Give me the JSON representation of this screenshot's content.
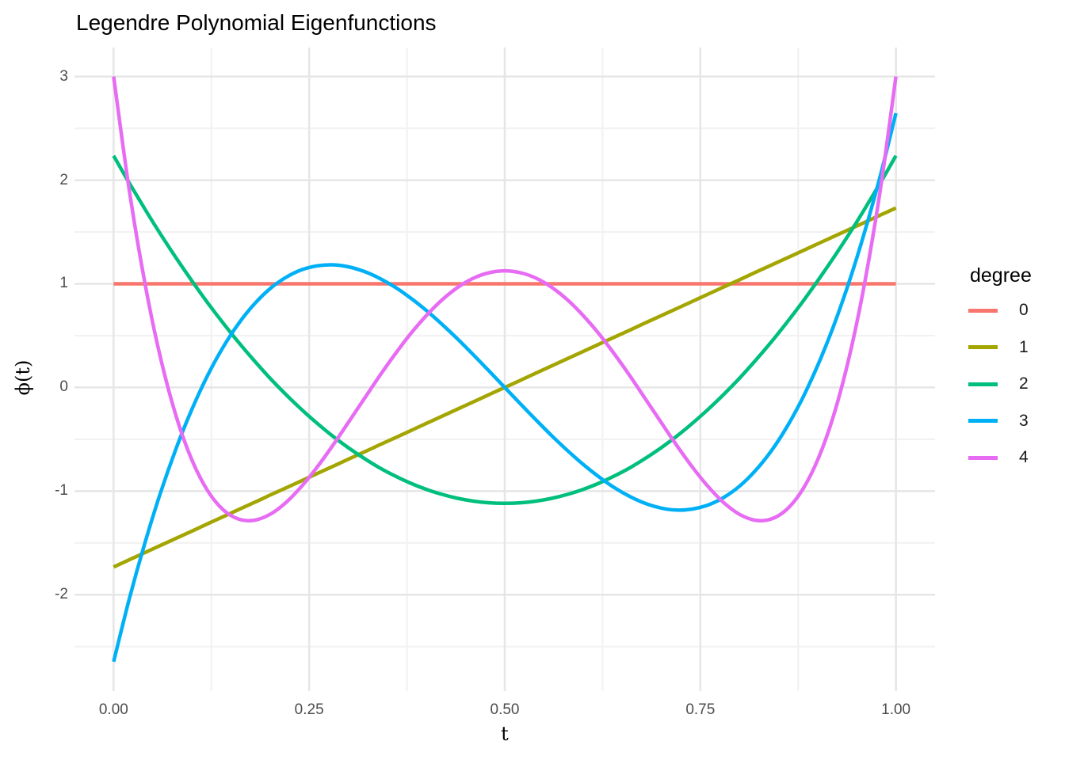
{
  "title": "Legendre Polynomial Eigenfunctions",
  "chart_data": {
    "type": "line",
    "title": "Legendre Polynomial Eigenfunctions",
    "xlabel": "t",
    "ylabel": "ϕ(t)",
    "xlim": [
      -0.05,
      1.05
    ],
    "ylim": [
      -2.93,
      3.28
    ],
    "grid": "major and minor, light gray on white, no axis lines, no tick marks",
    "legend": {
      "title": "degree",
      "position": "right"
    },
    "x_ticks": {
      "values": [
        0,
        0.25,
        0.5,
        0.75,
        1
      ],
      "labels": [
        "0.00",
        "0.25",
        "0.50",
        "0.75",
        "1.00"
      ]
    },
    "y_ticks": {
      "values": [
        3,
        2,
        1,
        0,
        -1,
        -2
      ],
      "labels": [
        "3",
        "2",
        "1",
        "0",
        "-1",
        "-2"
      ]
    },
    "x_minor": [
      0.125,
      0.375,
      0.625,
      0.875
    ],
    "y_minor": [
      2.5,
      1.5,
      0.5,
      -0.5,
      -1.5,
      -2.5
    ],
    "x": [
      0,
      0.02,
      0.04,
      0.06,
      0.08,
      0.1,
      0.12,
      0.14,
      0.16,
      0.18,
      0.2,
      0.22,
      0.24,
      0.26,
      0.28,
      0.3,
      0.32,
      0.34,
      0.36,
      0.38,
      0.4,
      0.42,
      0.44,
      0.46,
      0.48,
      0.5,
      0.52,
      0.54,
      0.56,
      0.58,
      0.6,
      0.62,
      0.64,
      0.66,
      0.68,
      0.7,
      0.72,
      0.74,
      0.76,
      0.78,
      0.8,
      0.82,
      0.84,
      0.86,
      0.88,
      0.9,
      0.92,
      0.94,
      0.96,
      0.98,
      1
    ],
    "series": [
      {
        "name": "0",
        "color": "#F8766D",
        "values": [
          1,
          1,
          1,
          1,
          1,
          1,
          1,
          1,
          1,
          1,
          1,
          1,
          1,
          1,
          1,
          1,
          1,
          1,
          1,
          1,
          1,
          1,
          1,
          1,
          1,
          1,
          1,
          1,
          1,
          1,
          1,
          1,
          1,
          1,
          1,
          1,
          1,
          1,
          1,
          1,
          1,
          1,
          1,
          1,
          1,
          1,
          1,
          1,
          1,
          1,
          1
        ]
      },
      {
        "name": "1",
        "color": "#A3A500",
        "values": [
          -1.732,
          -1.663,
          -1.593,
          -1.524,
          -1.455,
          -1.386,
          -1.316,
          -1.247,
          -1.178,
          -1.109,
          -1.039,
          -0.97,
          -0.901,
          -0.831,
          -0.762,
          -0.693,
          -0.624,
          -0.554,
          -0.485,
          -0.416,
          -0.346,
          -0.277,
          -0.208,
          -0.139,
          -0.069,
          0,
          0.069,
          0.139,
          0.208,
          0.277,
          0.346,
          0.416,
          0.485,
          0.554,
          0.624,
          0.693,
          0.762,
          0.831,
          0.901,
          0.97,
          1.039,
          1.109,
          1.178,
          1.247,
          1.316,
          1.386,
          1.455,
          1.524,
          1.593,
          1.663,
          1.732
        ]
      },
      {
        "name": "2",
        "color": "#00BF7D",
        "values": [
          2.236,
          1.973,
          1.721,
          1.479,
          1.249,
          1.029,
          0.819,
          0.621,
          0.433,
          0.256,
          0.089,
          -0.066,
          -0.211,
          -0.345,
          -0.469,
          -0.581,
          -0.683,
          -0.775,
          -0.855,
          -0.925,
          -0.984,
          -1.032,
          -1.07,
          -1.097,
          -1.113,
          -1.118,
          -1.113,
          -1.097,
          -1.07,
          -1.032,
          -0.984,
          -0.925,
          -0.855,
          -0.775,
          -0.683,
          -0.581,
          -0.469,
          -0.345,
          -0.211,
          -0.066,
          0.089,
          0.256,
          0.433,
          0.621,
          0.819,
          1.029,
          1.249,
          1.479,
          1.721,
          1.973,
          2.236
        ]
      },
      {
        "name": "3",
        "color": "#00B0F6",
        "values": [
          -2.646,
          -2.042,
          -1.5,
          -1.015,
          -0.587,
          -0.212,
          0.113,
          0.389,
          0.619,
          0.806,
          0.953,
          1.061,
          1.134,
          1.173,
          1.183,
          1.164,
          1.12,
          1.053,
          0.966,
          0.861,
          0.741,
          0.608,
          0.465,
          0.314,
          0.158,
          0,
          -0.158,
          -0.314,
          -0.465,
          -0.608,
          -0.741,
          -0.861,
          -0.966,
          -1.053,
          -1.12,
          -1.164,
          -1.183,
          -1.173,
          -1.134,
          -1.061,
          -0.953,
          -0.806,
          -0.619,
          -0.389,
          -0.113,
          0.212,
          0.587,
          1.015,
          1.5,
          2.042,
          2.646
        ]
      },
      {
        "name": "4",
        "color": "#E76BF3",
        "values": [
          3,
          1.905,
          1.006,
          0.284,
          -0.278,
          -0.699,
          -0.994,
          -1.18,
          -1.271,
          -1.281,
          -1.224,
          -1.112,
          -0.957,
          -0.77,
          -0.561,
          -0.339,
          -0.113,
          0.111,
          0.324,
          0.521,
          0.696,
          0.846,
          0.966,
          1.054,
          1.107,
          1.125,
          1.107,
          1.054,
          0.966,
          0.846,
          0.696,
          0.521,
          0.324,
          0.111,
          -0.113,
          -0.339,
          -0.561,
          -0.77,
          -0.957,
          -1.112,
          -1.224,
          -1.281,
          -1.271,
          -1.18,
          -0.994,
          -0.699,
          -0.278,
          0.284,
          1.006,
          1.905,
          3
        ]
      }
    ]
  },
  "style": {
    "background": "#FFFFFF",
    "grid_major_color": "#E6E6E6",
    "grid_minor_color": "#F2F2F2",
    "tick_label_color": "#4D4D4D",
    "text_color": "#000000",
    "line_width": 4.5
  }
}
